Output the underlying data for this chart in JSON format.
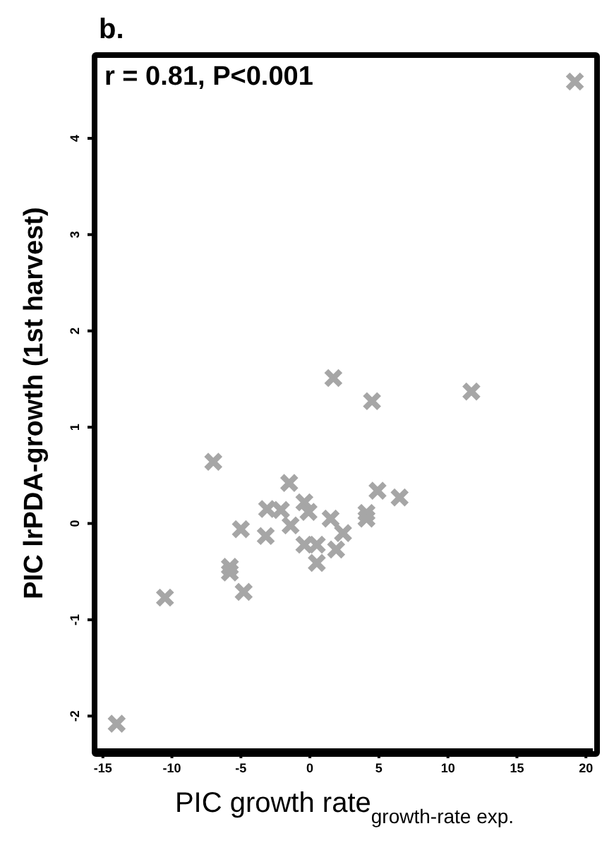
{
  "chart_data": {
    "type": "scatter",
    "title": "b.",
    "xlabel": "PIC growth rate$_{growth-rate exp.}$",
    "ylabel": "PIC lrPDA-growth (1st harvest)",
    "annotations": [
      "r = 0.81, P<0.001"
    ],
    "x": [
      -14.0,
      -10.5,
      -7.0,
      -5.8,
      -5.8,
      -5.0,
      -4.8,
      -3.2,
      -3.1,
      -2.1,
      -1.5,
      -1.4,
      -0.4,
      -0.1,
      -0.4,
      0.5,
      0.5,
      1.5,
      1.9,
      2.4,
      4.1,
      4.1,
      4.9,
      6.5,
      1.7,
      4.5,
      11.7,
      19.2
    ],
    "series": [
      {
        "color": "#a6a6a6",
        "values": [
          -2.08,
          -0.77,
          0.64,
          -0.45,
          -0.51,
          -0.06,
          -0.71,
          -0.13,
          0.15,
          0.14,
          0.42,
          -0.02,
          0.22,
          0.12,
          -0.22,
          -0.22,
          -0.41,
          0.05,
          -0.27,
          -0.1,
          0.11,
          0.05,
          0.34,
          0.27,
          1.51,
          1.27,
          1.37,
          4.59
        ]
      }
    ],
    "xlim": [
      -15.5,
      20.5
    ],
    "ylim": [
      -2.35,
      4.85
    ],
    "xticks": [
      -15,
      -10,
      -5,
      0,
      5,
      10,
      15,
      20
    ],
    "yticks": [
      -2,
      -1,
      0,
      1,
      2,
      3,
      4
    ],
    "grid": false,
    "legend": false,
    "marker": "cross"
  }
}
